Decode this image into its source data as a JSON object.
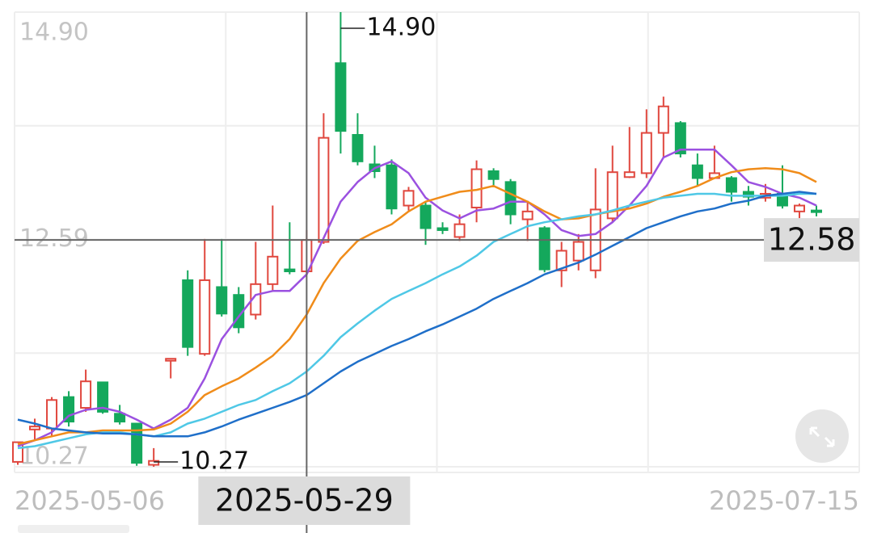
{
  "chart_data": {
    "type": "candlestick",
    "categories": [
      "2025-05-06",
      null,
      null,
      null,
      null,
      null,
      null,
      null,
      null,
      null,
      null,
      null,
      null,
      null,
      null,
      null,
      null,
      "2025-05-29",
      null,
      null,
      null,
      null,
      null,
      null,
      null,
      null,
      null,
      null,
      null,
      null,
      null,
      null,
      null,
      null,
      null,
      null,
      null,
      null,
      null,
      null,
      null,
      null,
      null,
      null,
      null,
      null,
      null,
      "2025-07-15"
    ],
    "open": [
      10.32,
      10.65,
      10.66,
      10.98,
      10.87,
      11.13,
      10.81,
      10.71,
      10.29,
      11.35,
      12.17,
      11.42,
      12.1,
      12.02,
      11.82,
      12.13,
      12.28,
      12.26,
      12.56,
      14.38,
      13.65,
      13.35,
      13.34,
      12.93,
      12.93,
      12.7,
      12.61,
      12.91,
      13.28,
      13.17,
      12.79,
      12.7,
      12.27,
      12.37,
      12.27,
      12.8,
      13.22,
      13.26,
      13.67,
      13.77,
      13.34,
      13.21,
      13.21,
      13.07,
      13.01,
      13.05,
      12.87,
      12.88
    ],
    "high": [
      10.52,
      10.76,
      10.98,
      11.04,
      11.26,
      11.13,
      10.9,
      10.71,
      10.46,
      11.37,
      12.27,
      12.59,
      12.59,
      12.1,
      12.56,
      12.93,
      12.76,
      12.68,
      13.87,
      14.9,
      13.87,
      13.54,
      13.4,
      13.12,
      12.97,
      12.76,
      12.84,
      13.39,
      13.31,
      13.2,
      12.98,
      12.72,
      12.56,
      12.64,
      13.31,
      13.54,
      13.73,
      13.91,
      14.04,
      13.79,
      13.46,
      13.54,
      13.23,
      13.13,
      13.15,
      13.34,
      12.95,
      12.93
    ],
    "low": [
      10.29,
      10.54,
      10.58,
      10.68,
      10.83,
      10.81,
      10.7,
      10.28,
      10.27,
      11.17,
      11.4,
      11.4,
      11.8,
      11.63,
      11.77,
      12.06,
      12.23,
      12.24,
      12.54,
      13.46,
      13.34,
      13.21,
      12.84,
      12.88,
      12.53,
      12.64,
      12.57,
      12.76,
      13.13,
      12.74,
      12.57,
      12.25,
      12.1,
      12.27,
      12.19,
      12.76,
      13.21,
      13.21,
      13.42,
      13.42,
      13.13,
      13.2,
      12.97,
      12.93,
      12.97,
      12.9,
      12.8,
      12.82
    ],
    "close": [
      10.52,
      10.68,
      10.95,
      10.73,
      11.14,
      10.83,
      10.73,
      10.31,
      10.33,
      11.37,
      11.49,
      12.17,
      11.83,
      11.69,
      12.13,
      12.41,
      12.26,
      12.58,
      13.62,
      13.69,
      13.38,
      13.28,
      12.9,
      13.08,
      12.7,
      12.68,
      12.74,
      13.3,
      13.2,
      12.84,
      12.87,
      12.28,
      12.47,
      12.56,
      12.89,
      13.27,
      13.27,
      13.67,
      13.94,
      13.46,
      13.21,
      13.26,
      13.07,
      13.02,
      13.05,
      12.93,
      12.93,
      12.87
    ],
    "up_color": "#e0473e",
    "down_color": "#14a85c",
    "series": [
      {
        "color": "#9b51e0",
        "values": [
          10.48,
          10.54,
          10.62,
          10.79,
          10.85,
          10.87,
          10.83,
          10.75,
          10.66,
          10.75,
          10.87,
          11.17,
          11.57,
          11.8,
          12.02,
          12.06,
          12.06,
          12.23,
          12.6,
          12.97,
          13.17,
          13.31,
          13.38,
          13.26,
          13.01,
          12.88,
          12.8,
          12.88,
          12.9,
          12.97,
          12.97,
          12.84,
          12.68,
          12.62,
          12.64,
          12.76,
          12.93,
          13.13,
          13.42,
          13.5,
          13.5,
          13.5,
          13.34,
          13.17,
          13.12,
          13.05,
          13.01,
          12.93
        ]
      },
      {
        "color": "#f08c1a",
        "values": [
          10.5,
          10.54,
          10.58,
          10.62,
          10.62,
          10.64,
          10.64,
          10.64,
          10.65,
          10.71,
          10.83,
          11.0,
          11.09,
          11.17,
          11.28,
          11.4,
          11.57,
          11.82,
          12.14,
          12.39,
          12.57,
          12.66,
          12.74,
          12.87,
          12.97,
          13.02,
          13.07,
          13.09,
          13.13,
          13.05,
          12.97,
          12.87,
          12.79,
          12.8,
          12.84,
          12.87,
          12.9,
          12.95,
          13.02,
          13.07,
          13.13,
          13.21,
          13.27,
          13.3,
          13.31,
          13.3,
          13.26,
          13.17
        ]
      },
      {
        "color": "#4fc8e6",
        "values": [
          10.46,
          10.48,
          10.52,
          10.56,
          10.6,
          10.62,
          10.62,
          10.6,
          10.58,
          10.62,
          10.71,
          10.76,
          10.83,
          10.9,
          10.95,
          11.04,
          11.12,
          11.24,
          11.4,
          11.59,
          11.73,
          11.86,
          11.98,
          12.06,
          12.14,
          12.23,
          12.31,
          12.42,
          12.56,
          12.64,
          12.72,
          12.76,
          12.79,
          12.82,
          12.84,
          12.88,
          12.93,
          12.97,
          13.01,
          13.03,
          13.05,
          13.05,
          13.03,
          13.03,
          13.03,
          13.03,
          13.05,
          13.05
        ]
      },
      {
        "color": "#1f6fc9",
        "values": [
          10.75,
          10.71,
          10.66,
          10.64,
          10.62,
          10.61,
          10.61,
          10.6,
          10.58,
          10.58,
          10.58,
          10.62,
          10.68,
          10.75,
          10.81,
          10.87,
          10.93,
          11.0,
          11.12,
          11.24,
          11.34,
          11.42,
          11.5,
          11.57,
          11.65,
          11.72,
          11.8,
          11.88,
          11.98,
          12.06,
          12.14,
          12.23,
          12.29,
          12.35,
          12.43,
          12.52,
          12.61,
          12.7,
          12.76,
          12.82,
          12.87,
          12.9,
          12.95,
          12.98,
          13.03,
          13.05,
          13.07,
          13.05
        ]
      }
    ],
    "ylim": [
      10.27,
      14.9
    ],
    "yticks": [
      {
        "value": 14.9,
        "label": "14.90"
      },
      {
        "value": 12.585,
        "label": "12.59"
      },
      {
        "value": 10.27,
        "label": "10.27"
      }
    ],
    "ygrid": [
      14.9,
      13.7425,
      12.585,
      11.4275,
      10.27
    ],
    "annotations": [
      {
        "value": 14.9,
        "label": "14.90"
      },
      {
        "value": 10.27,
        "label": "10.27"
      }
    ],
    "crosshair": {
      "y": 12.58
    }
  }
}
